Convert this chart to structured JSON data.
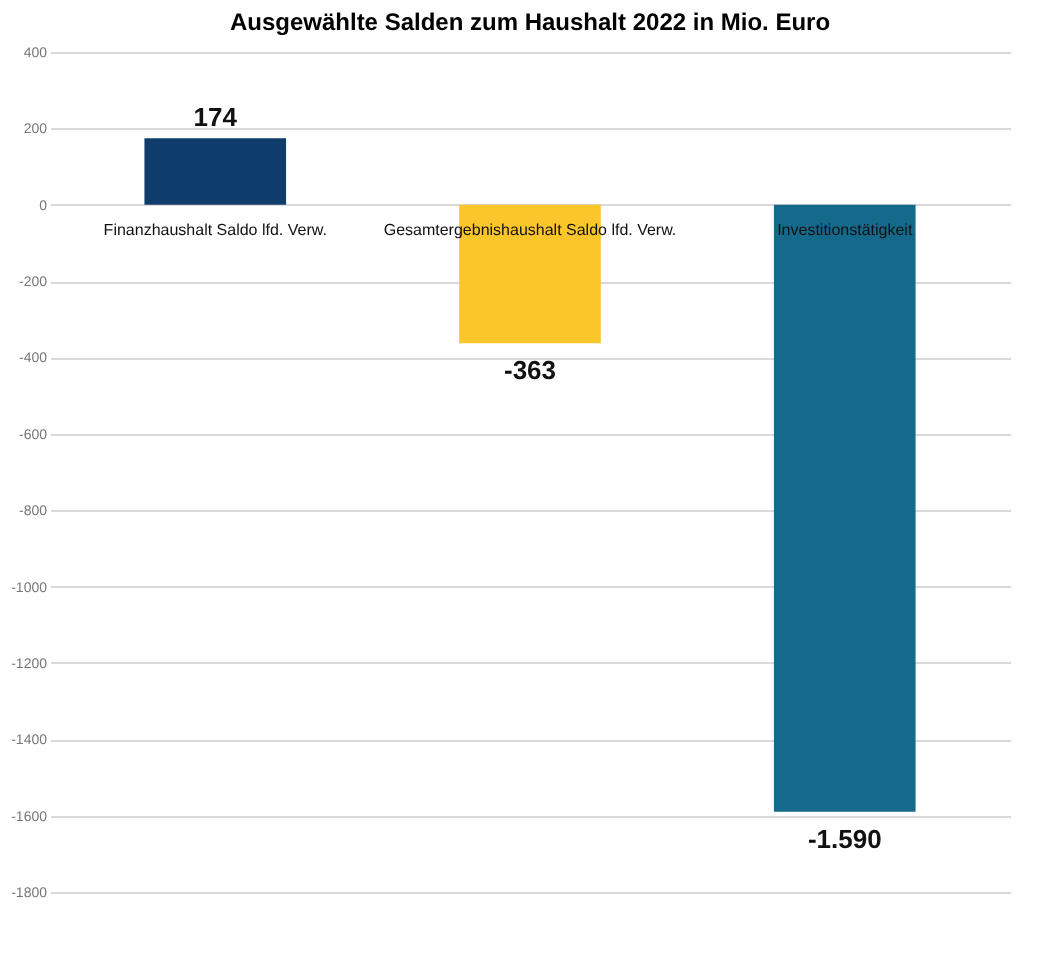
{
  "chart_data": {
    "type": "bar",
    "title": "Ausgewählte Salden zum Haushalt 2022 in Mio. Euro",
    "categories": [
      "Finanzhaushalt Saldo lfd. Verw.",
      "Gesamtergebnishaushalt Saldo lfd. Verw.",
      "Investitionstätigkeit"
    ],
    "values": [
      174,
      -363,
      -1590
    ],
    "colors": [
      "#0f3d6b",
      "#fbc62a",
      "#156a8c"
    ],
    "value_labels": [
      "174",
      "-363",
      "-1.590"
    ],
    "ylim": [
      -1800,
      400
    ],
    "yticks": [
      400,
      200,
      0,
      -200,
      -400,
      -600,
      -800,
      -1000,
      -1200,
      -1400,
      -1600,
      -1800
    ],
    "grid": "y"
  }
}
